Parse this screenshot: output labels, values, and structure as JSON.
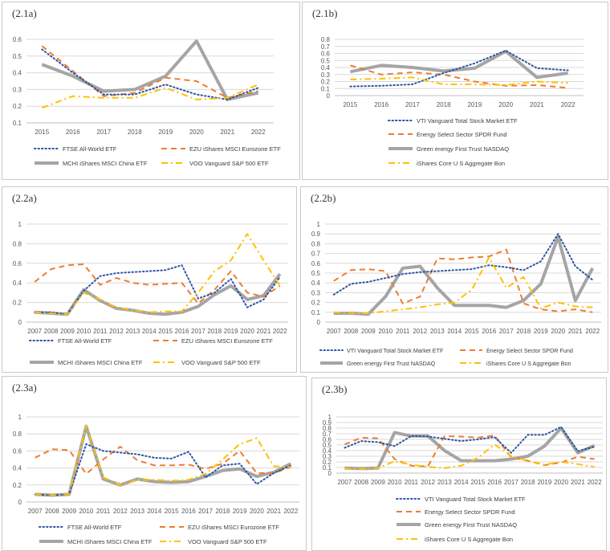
{
  "colors": {
    "blue": "#2F55A4",
    "orange": "#ED7D31",
    "gray": "#A5A5A5",
    "gold": "#FFC000",
    "grid": "#d9d9d9",
    "axis": "#bfbfbf",
    "text": "#595959"
  },
  "chart_data": [
    {
      "id": "2.1a",
      "type": "line",
      "title": "(2.1a)",
      "x": [
        "2015",
        "2016",
        "2017",
        "2018",
        "2019",
        "2020",
        "2021",
        "2022"
      ],
      "ylim": [
        0.1,
        0.6
      ],
      "yticks": [
        "0.1",
        "0.2",
        "0.3",
        "0.4",
        "0.5",
        "0.6"
      ],
      "series": [
        {
          "name": "FTSE All-World ETF",
          "style": "dot",
          "values": [
            0.54,
            0.4,
            0.27,
            0.27,
            0.33,
            0.27,
            0.24,
            0.31
          ]
        },
        {
          "name": "EZU iShares MSCI Eurozone ETF",
          "style": "dash",
          "values": [
            0.56,
            0.41,
            0.26,
            0.28,
            0.37,
            0.35,
            0.25,
            0.29
          ]
        },
        {
          "name": "MCHI iShares MSCI China ETF",
          "style": "solid",
          "values": [
            0.45,
            0.38,
            0.29,
            0.3,
            0.38,
            0.59,
            0.24,
            0.28
          ]
        },
        {
          "name": "VOO Vanguard S&P 500 ETF",
          "style": "dashdot",
          "values": [
            0.19,
            0.26,
            0.25,
            0.25,
            0.31,
            0.24,
            0.25,
            0.33
          ]
        }
      ]
    },
    {
      "id": "2.1b",
      "type": "line",
      "title": "(2.1b)",
      "x": [
        "2015",
        "2016",
        "2017",
        "2018",
        "2019",
        "2020",
        "2021",
        "2022"
      ],
      "ylim": [
        0,
        0.8
      ],
      "yticks": [
        "0",
        "0.1",
        "0.2",
        "0.3",
        "0.4",
        "0.5",
        "0.6",
        "0.7",
        "0.8"
      ],
      "series": [
        {
          "name": "VTI Vanguard Total Stock Market ETF",
          "style": "dot",
          "values": [
            0.13,
            0.14,
            0.16,
            0.32,
            0.46,
            0.64,
            0.39,
            0.36
          ]
        },
        {
          "name": "Energy Select Sector SPDR Fund",
          "style": "dash",
          "values": [
            0.43,
            0.3,
            0.33,
            0.3,
            0.2,
            0.14,
            0.15,
            0.11
          ]
        },
        {
          "name": "Green energy First Trust NASDAQ",
          "style": "solid",
          "values": [
            0.34,
            0.43,
            0.4,
            0.35,
            0.39,
            0.63,
            0.26,
            0.32
          ]
        },
        {
          "name": "iShares Core U S  Aggregate Bon",
          "style": "dashdot",
          "values": [
            0.23,
            0.24,
            0.26,
            0.16,
            0.16,
            0.15,
            0.2,
            0.18
          ]
        }
      ]
    },
    {
      "id": "2.2a",
      "type": "line",
      "title": "(2.2a)",
      "x": [
        "2007",
        "2008",
        "2009",
        "2010",
        "2011",
        "2012",
        "2013",
        "2014",
        "2015",
        "2016",
        "2017",
        "2018",
        "2019",
        "2020",
        "2021",
        "2022"
      ],
      "ylim": [
        0,
        1
      ],
      "yticks": [
        "0",
        "0.2",
        "0.4",
        "0.6",
        "0.8",
        "1"
      ],
      "series": [
        {
          "name": "FTSE All-World ETF",
          "style": "dot",
          "values": [
            0.1,
            0.1,
            0.08,
            0.32,
            0.47,
            0.5,
            0.51,
            0.52,
            0.53,
            0.58,
            0.24,
            0.3,
            0.44,
            0.15,
            0.23,
            0.46
          ]
        },
        {
          "name": "EZU iShares MSCI Eurozone ETF",
          "style": "dash",
          "values": [
            0.41,
            0.54,
            0.58,
            0.59,
            0.38,
            0.45,
            0.4,
            0.38,
            0.39,
            0.4,
            0.19,
            0.33,
            0.52,
            0.3,
            0.26,
            0.37
          ]
        },
        {
          "name": "MCHI iShares MSCI China ETF",
          "style": "solid",
          "values": [
            0.1,
            0.09,
            0.08,
            0.33,
            0.22,
            0.14,
            0.12,
            0.09,
            0.08,
            0.1,
            0.16,
            0.28,
            0.37,
            0.23,
            0.27,
            0.49
          ]
        },
        {
          "name": "VOO Vanguard S&P 500 ETF",
          "style": "dashdot",
          "values": [
            0.1,
            0.09,
            0.08,
            0.3,
            0.23,
            0.15,
            0.12,
            0.1,
            0.11,
            0.11,
            0.3,
            0.52,
            0.63,
            0.9,
            0.63,
            0.37
          ]
        }
      ]
    },
    {
      "id": "2.2b",
      "type": "line",
      "title": "(2.2b)",
      "x": [
        "2007",
        "2008",
        "2009",
        "2010",
        "2011",
        "2012",
        "2013",
        "2014",
        "2015",
        "2016",
        "2017",
        "2018",
        "2019",
        "2020",
        "2021",
        "2022"
      ],
      "ylim": [
        0,
        1
      ],
      "yticks": [
        "0",
        "0.1",
        "0.2",
        "0.3",
        "0.4",
        "0.5",
        "0.6",
        "0.7",
        "0.8",
        "0.9",
        "1"
      ],
      "series": [
        {
          "name": "VTI Vanguard Total Stock Market ETF",
          "style": "dot",
          "values": [
            0.28,
            0.39,
            0.41,
            0.45,
            0.49,
            0.51,
            0.52,
            0.53,
            0.54,
            0.58,
            0.56,
            0.53,
            0.62,
            0.9,
            0.57,
            0.43
          ]
        },
        {
          "name": "Energy Select Sector SPDR Fund",
          "style": "dash",
          "values": [
            0.42,
            0.53,
            0.54,
            0.52,
            0.19,
            0.26,
            0.65,
            0.64,
            0.66,
            0.67,
            0.74,
            0.19,
            0.13,
            0.11,
            0.13,
            0.1
          ]
        },
        {
          "name": "Green energy First Trust NASDAQ",
          "style": "solid",
          "values": [
            0.09,
            0.09,
            0.08,
            0.26,
            0.55,
            0.57,
            0.35,
            0.17,
            0.17,
            0.17,
            0.15,
            0.22,
            0.39,
            0.87,
            0.22,
            0.55
          ]
        },
        {
          "name": "iShares Core U S  Aggregate Bon",
          "style": "dashdot",
          "values": [
            0.1,
            0.09,
            0.09,
            0.11,
            0.13,
            0.15,
            0.18,
            0.2,
            0.33,
            0.66,
            0.35,
            0.46,
            0.14,
            0.2,
            0.16,
            0.15
          ]
        }
      ]
    },
    {
      "id": "2.3a",
      "type": "line",
      "title": "(2.3a)",
      "x": [
        "2007",
        "2008",
        "2009",
        "2010",
        "2011",
        "2012",
        "2013",
        "2014",
        "2015",
        "2016",
        "2017",
        "2018",
        "2019",
        "2020",
        "2021",
        "2022"
      ],
      "ylim": [
        0,
        1
      ],
      "yticks": [
        "0",
        "0.2",
        "0.4",
        "0.6",
        "0.8",
        "1"
      ],
      "series": [
        {
          "name": "FTSE All-World ETF",
          "style": "dot",
          "values": [
            0.09,
            0.08,
            0.09,
            0.68,
            0.6,
            0.58,
            0.56,
            0.52,
            0.51,
            0.59,
            0.29,
            0.43,
            0.45,
            0.21,
            0.34,
            0.43
          ]
        },
        {
          "name": "EZU iShares MSCI Eurozone ETF",
          "style": "dash",
          "values": [
            0.52,
            0.62,
            0.61,
            0.33,
            0.5,
            0.65,
            0.49,
            0.43,
            0.43,
            0.44,
            0.39,
            0.45,
            0.6,
            0.34,
            0.34,
            0.41
          ]
        },
        {
          "name": "MCHI iShares MSCI China ETF",
          "style": "solid",
          "values": [
            0.09,
            0.08,
            0.09,
            0.89,
            0.27,
            0.2,
            0.27,
            0.24,
            0.23,
            0.24,
            0.3,
            0.37,
            0.39,
            0.3,
            0.35,
            0.45
          ]
        },
        {
          "name": "VOO Vanguard S&P 500 ETF",
          "style": "dashdot",
          "values": [
            0.09,
            0.08,
            0.09,
            0.9,
            0.29,
            0.2,
            0.26,
            0.26,
            0.25,
            0.26,
            0.33,
            0.5,
            0.68,
            0.75,
            0.42,
            0.41
          ]
        }
      ]
    },
    {
      "id": "2.3b",
      "type": "line",
      "title": "(2.3b)",
      "x": [
        "2007",
        "2008",
        "2009",
        "2010",
        "2011",
        "2012",
        "2013",
        "2014",
        "2015",
        "2016",
        "2017",
        "2018",
        "2019",
        "2020",
        "2021",
        "2022"
      ],
      "ylim": [
        0,
        1
      ],
      "yticks": [
        "0",
        "0.1",
        "0.2",
        "0.3",
        "0.4",
        "0.5",
        "0.6",
        "0.7",
        "0.8",
        "0.9",
        "1"
      ],
      "series": [
        {
          "name": "VTI Vanguard Total Stock Market ETF",
          "style": "dot",
          "values": [
            0.45,
            0.57,
            0.55,
            0.48,
            0.66,
            0.65,
            0.61,
            0.57,
            0.6,
            0.64,
            0.36,
            0.68,
            0.68,
            0.82,
            0.39,
            0.47
          ]
        },
        {
          "name": "Energy Select Sector SPDR Fund",
          "style": "dash",
          "values": [
            0.51,
            0.63,
            0.62,
            0.25,
            0.13,
            0.12,
            0.66,
            0.65,
            0.63,
            0.67,
            0.28,
            0.22,
            0.14,
            0.19,
            0.29,
            0.25
          ]
        },
        {
          "name": "Green energy First Trust NASDAQ",
          "style": "solid",
          "values": [
            0.09,
            0.08,
            0.09,
            0.72,
            0.66,
            0.66,
            0.4,
            0.22,
            0.22,
            0.22,
            0.25,
            0.3,
            0.48,
            0.8,
            0.36,
            0.49
          ]
        },
        {
          "name": "iShares Core U S  Aggregate Bon",
          "style": "dashdot",
          "values": [
            0.08,
            0.07,
            0.09,
            0.21,
            0.15,
            0.11,
            0.09,
            0.13,
            0.27,
            0.51,
            0.3,
            0.22,
            0.15,
            0.2,
            0.16,
            0.11
          ]
        }
      ]
    }
  ]
}
